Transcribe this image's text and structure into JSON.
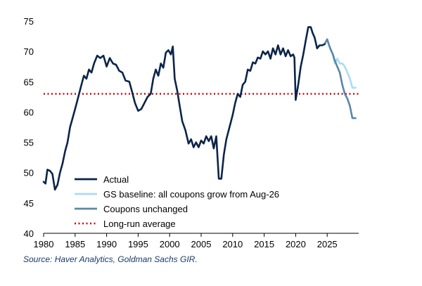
{
  "source_note": "Source: Haver Analytics, Goldman Sachs GIR.",
  "chart_data": {
    "type": "line",
    "xlim": [
      1980,
      2030
    ],
    "ylim": [
      40,
      75
    ],
    "x_ticks": [
      1980,
      1985,
      1990,
      1995,
      2000,
      2005,
      2010,
      2015,
      2020,
      2025
    ],
    "y_ticks": [
      40,
      45,
      50,
      55,
      60,
      65,
      70,
      75
    ],
    "grid": false,
    "legend_position": "lower-left",
    "reference_line": {
      "name": "Long-run average",
      "value": 63,
      "style": "dotted",
      "color": "#c00000"
    },
    "series": [
      {
        "name": "Actual",
        "color": "#0b2548",
        "width": 2.6,
        "points": [
          [
            1980.0,
            48.5
          ],
          [
            1980.3,
            48.2
          ],
          [
            1980.6,
            50.5
          ],
          [
            1981.0,
            50.3
          ],
          [
            1981.4,
            49.8
          ],
          [
            1981.8,
            47.2
          ],
          [
            1982.2,
            48.0
          ],
          [
            1982.6,
            50.0
          ],
          [
            1983.0,
            51.5
          ],
          [
            1983.4,
            53.5
          ],
          [
            1983.8,
            55.0
          ],
          [
            1984.2,
            57.5
          ],
          [
            1984.6,
            59.0
          ],
          [
            1985.0,
            60.5
          ],
          [
            1985.5,
            62.5
          ],
          [
            1986.0,
            64.5
          ],
          [
            1986.4,
            66.0
          ],
          [
            1986.8,
            65.5
          ],
          [
            1987.2,
            67.0
          ],
          [
            1987.6,
            66.5
          ],
          [
            1988.0,
            68.0
          ],
          [
            1988.5,
            69.3
          ],
          [
            1989.0,
            68.9
          ],
          [
            1989.5,
            69.3
          ],
          [
            1990.0,
            67.5
          ],
          [
            1990.5,
            68.9
          ],
          [
            1991.0,
            68.0
          ],
          [
            1991.5,
            67.8
          ],
          [
            1992.0,
            66.8
          ],
          [
            1992.5,
            66.5
          ],
          [
            1993.0,
            65.2
          ],
          [
            1993.6,
            65.0
          ],
          [
            1994.0,
            63.5
          ],
          [
            1994.5,
            61.5
          ],
          [
            1995.0,
            60.2
          ],
          [
            1995.5,
            60.5
          ],
          [
            1996.0,
            61.5
          ],
          [
            1996.5,
            62.5
          ],
          [
            1997.0,
            63.0
          ],
          [
            1997.4,
            65.5
          ],
          [
            1997.8,
            67.0
          ],
          [
            1998.2,
            66.0
          ],
          [
            1998.6,
            68.0
          ],
          [
            1999.0,
            67.3
          ],
          [
            1999.4,
            69.8
          ],
          [
            1999.8,
            70.2
          ],
          [
            2000.2,
            69.5
          ],
          [
            2000.5,
            70.8
          ],
          [
            2000.8,
            65.5
          ],
          [
            2001.2,
            63.5
          ],
          [
            2001.6,
            61.0
          ],
          [
            2002.0,
            58.5
          ],
          [
            2002.5,
            57.0
          ],
          [
            2003.0,
            54.8
          ],
          [
            2003.4,
            55.5
          ],
          [
            2003.8,
            54.2
          ],
          [
            2004.2,
            55.0
          ],
          [
            2004.6,
            54.2
          ],
          [
            2005.0,
            55.3
          ],
          [
            2005.4,
            54.8
          ],
          [
            2005.8,
            56.0
          ],
          [
            2006.2,
            55.2
          ],
          [
            2006.6,
            56.0
          ],
          [
            2007.0,
            54.0
          ],
          [
            2007.4,
            56.0
          ],
          [
            2007.8,
            49.0
          ],
          [
            2008.2,
            49.0
          ],
          [
            2008.6,
            53.0
          ],
          [
            2009.0,
            55.5
          ],
          [
            2009.5,
            57.5
          ],
          [
            2010.0,
            59.5
          ],
          [
            2010.4,
            61.5
          ],
          [
            2010.8,
            63.0
          ],
          [
            2011.2,
            62.5
          ],
          [
            2011.6,
            64.5
          ],
          [
            2012.0,
            65.0
          ],
          [
            2012.4,
            67.0
          ],
          [
            2012.8,
            66.8
          ],
          [
            2013.2,
            68.2
          ],
          [
            2013.6,
            68.0
          ],
          [
            2014.0,
            69.0
          ],
          [
            2014.4,
            68.8
          ],
          [
            2014.8,
            70.0
          ],
          [
            2015.2,
            69.5
          ],
          [
            2015.6,
            70.0
          ],
          [
            2016.0,
            68.8
          ],
          [
            2016.4,
            70.5
          ],
          [
            2016.8,
            69.5
          ],
          [
            2017.2,
            71.0
          ],
          [
            2017.6,
            69.5
          ],
          [
            2018.0,
            70.5
          ],
          [
            2018.4,
            69.2
          ],
          [
            2018.8,
            70.2
          ],
          [
            2019.2,
            69.2
          ],
          [
            2019.6,
            69.5
          ],
          [
            2019.8,
            69.0
          ],
          [
            2020.0,
            62.0
          ],
          [
            2020.4,
            64.5
          ],
          [
            2020.8,
            67.5
          ],
          [
            2021.2,
            69.5
          ],
          [
            2021.6,
            71.8
          ],
          [
            2022.0,
            74.0
          ],
          [
            2022.4,
            74.0
          ],
          [
            2022.7,
            73.0
          ],
          [
            2023.0,
            72.3
          ],
          [
            2023.4,
            70.5
          ],
          [
            2023.8,
            71.0
          ],
          [
            2024.2,
            71.0
          ],
          [
            2024.6,
            71.2
          ]
        ]
      },
      {
        "name": "GS baseline: all coupons grow from Aug-26",
        "color": "#a9dcf2",
        "width": 2.6,
        "points": [
          [
            2024.6,
            71.2
          ],
          [
            2025.0,
            72.0
          ],
          [
            2025.3,
            71.0
          ],
          [
            2025.6,
            70.2
          ],
          [
            2025.9,
            69.5
          ],
          [
            2026.2,
            68.0
          ],
          [
            2026.6,
            68.8
          ],
          [
            2027.0,
            68.0
          ],
          [
            2027.4,
            68.0
          ],
          [
            2027.8,
            67.5
          ],
          [
            2028.2,
            66.5
          ],
          [
            2028.6,
            65.5
          ],
          [
            2029.0,
            64.0
          ],
          [
            2029.5,
            64.0
          ]
        ]
      },
      {
        "name": "Coupons unchanged",
        "color": "#5a86aa",
        "width": 2.6,
        "points": [
          [
            2024.6,
            71.2
          ],
          [
            2025.0,
            72.0
          ],
          [
            2025.3,
            71.0
          ],
          [
            2025.6,
            70.2
          ],
          [
            2025.9,
            69.5
          ],
          [
            2026.2,
            68.5
          ],
          [
            2026.6,
            67.5
          ],
          [
            2027.0,
            66.5
          ],
          [
            2027.4,
            64.5
          ],
          [
            2027.8,
            63.0
          ],
          [
            2028.2,
            62.2
          ],
          [
            2028.6,
            61.0
          ],
          [
            2029.0,
            59.0
          ],
          [
            2029.5,
            59.0
          ]
        ]
      }
    ]
  }
}
